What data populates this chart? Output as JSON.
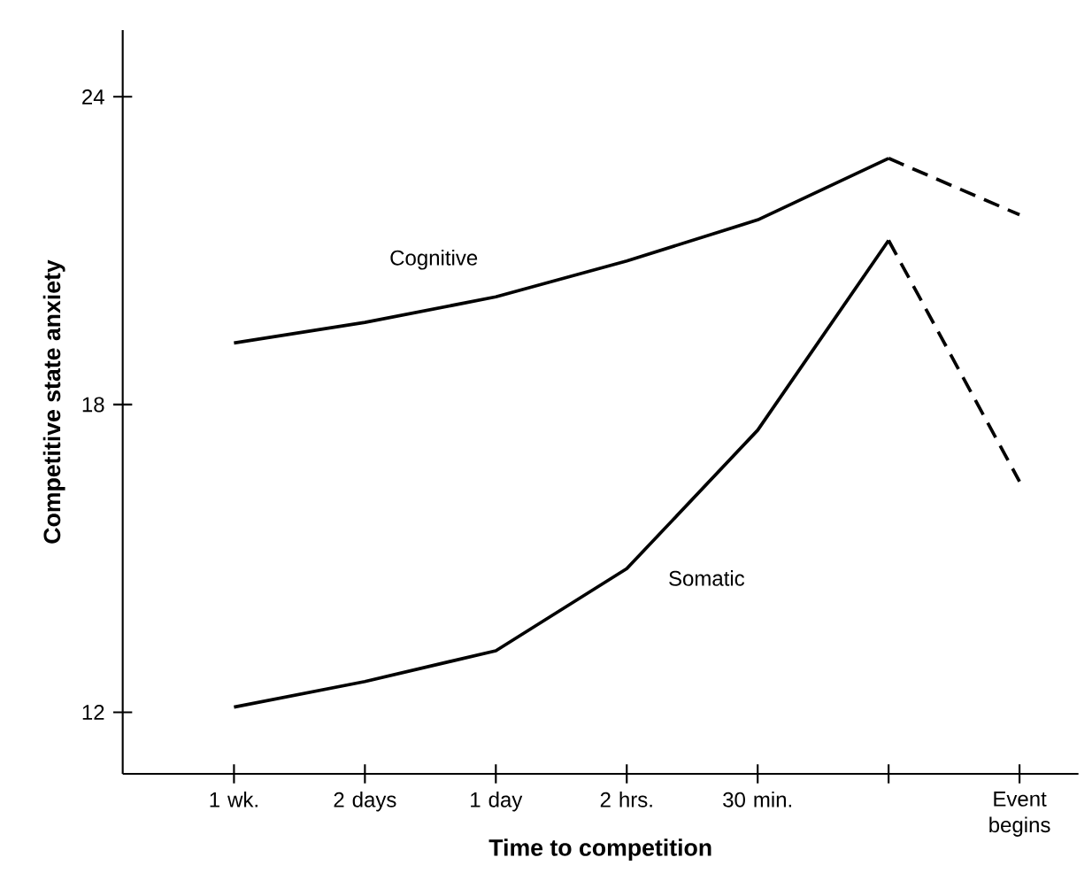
{
  "chart_data": {
    "type": "line",
    "xlabel": "Time to competition",
    "ylabel": "Competitive state anxiety",
    "categories": [
      "1 wk.",
      "2 days",
      "1 day",
      "2 hrs.",
      "30 min.",
      null,
      "Event begins"
    ],
    "ylim": [
      10.8,
      25.3
    ],
    "yticks": [
      12,
      18,
      24
    ],
    "grid": false,
    "legend": false,
    "marker": "none",
    "series": [
      {
        "name": "Cognitive",
        "color": "#000000",
        "line_style": "solid",
        "values": [
          19.2,
          19.6,
          20.1,
          20.8,
          21.6,
          22.8,
          null
        ]
      },
      {
        "color": "#000000",
        "line_style": "dashed",
        "values": [
          null,
          null,
          null,
          null,
          null,
          22.8,
          21.7
        ]
      },
      {
        "name": "Somatic",
        "color": "#000000",
        "line_style": "solid",
        "values": [
          12.1,
          12.6,
          13.2,
          14.8,
          17.5,
          21.2,
          null
        ]
      },
      {
        "color": "#000000",
        "line_style": "dashed",
        "values": [
          null,
          null,
          null,
          null,
          null,
          21.2,
          16.5
        ]
      }
    ]
  }
}
